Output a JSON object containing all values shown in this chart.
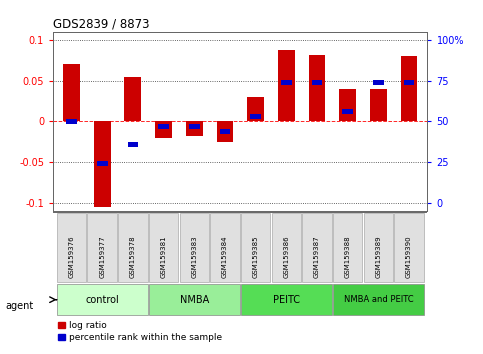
{
  "title": "GDS2839 / 8873",
  "samples": [
    "GSM159376",
    "GSM159377",
    "GSM159378",
    "GSM159381",
    "GSM159383",
    "GSM159384",
    "GSM159385",
    "GSM159386",
    "GSM159387",
    "GSM159388",
    "GSM159389",
    "GSM159390"
  ],
  "log_ratios": [
    0.07,
    -0.105,
    0.055,
    -0.02,
    -0.018,
    -0.025,
    0.03,
    0.088,
    0.082,
    0.04,
    0.04,
    0.08
  ],
  "percentile_ranks": [
    50,
    24,
    36,
    47,
    47,
    44,
    53,
    74,
    74,
    56,
    74,
    74
  ],
  "groups": [
    {
      "label": "control",
      "color": "#ccffcc",
      "start": 0,
      "end": 3
    },
    {
      "label": "NMBA",
      "color": "#99ee99",
      "start": 3,
      "end": 6
    },
    {
      "label": "PEITC",
      "color": "#55dd55",
      "start": 6,
      "end": 9
    },
    {
      "label": "NMBA and PEITC",
      "color": "#44cc44",
      "start": 9,
      "end": 12
    }
  ],
  "ylim_left": [
    -0.11,
    0.11
  ],
  "yticks_left": [
    -0.1,
    -0.05,
    0.0,
    0.05,
    0.1
  ],
  "yticks_right": [
    0,
    25,
    50,
    75,
    100
  ],
  "bar_width": 0.55,
  "blue_bar_width": 0.35,
  "blue_bar_height": 0.006,
  "red_color": "#cc0000",
  "blue_color": "#0000cc",
  "bg_color": "#ffffff",
  "label_log_ratio": "log ratio",
  "label_percentile": "percentile rank within the sample",
  "agent_label": "agent"
}
